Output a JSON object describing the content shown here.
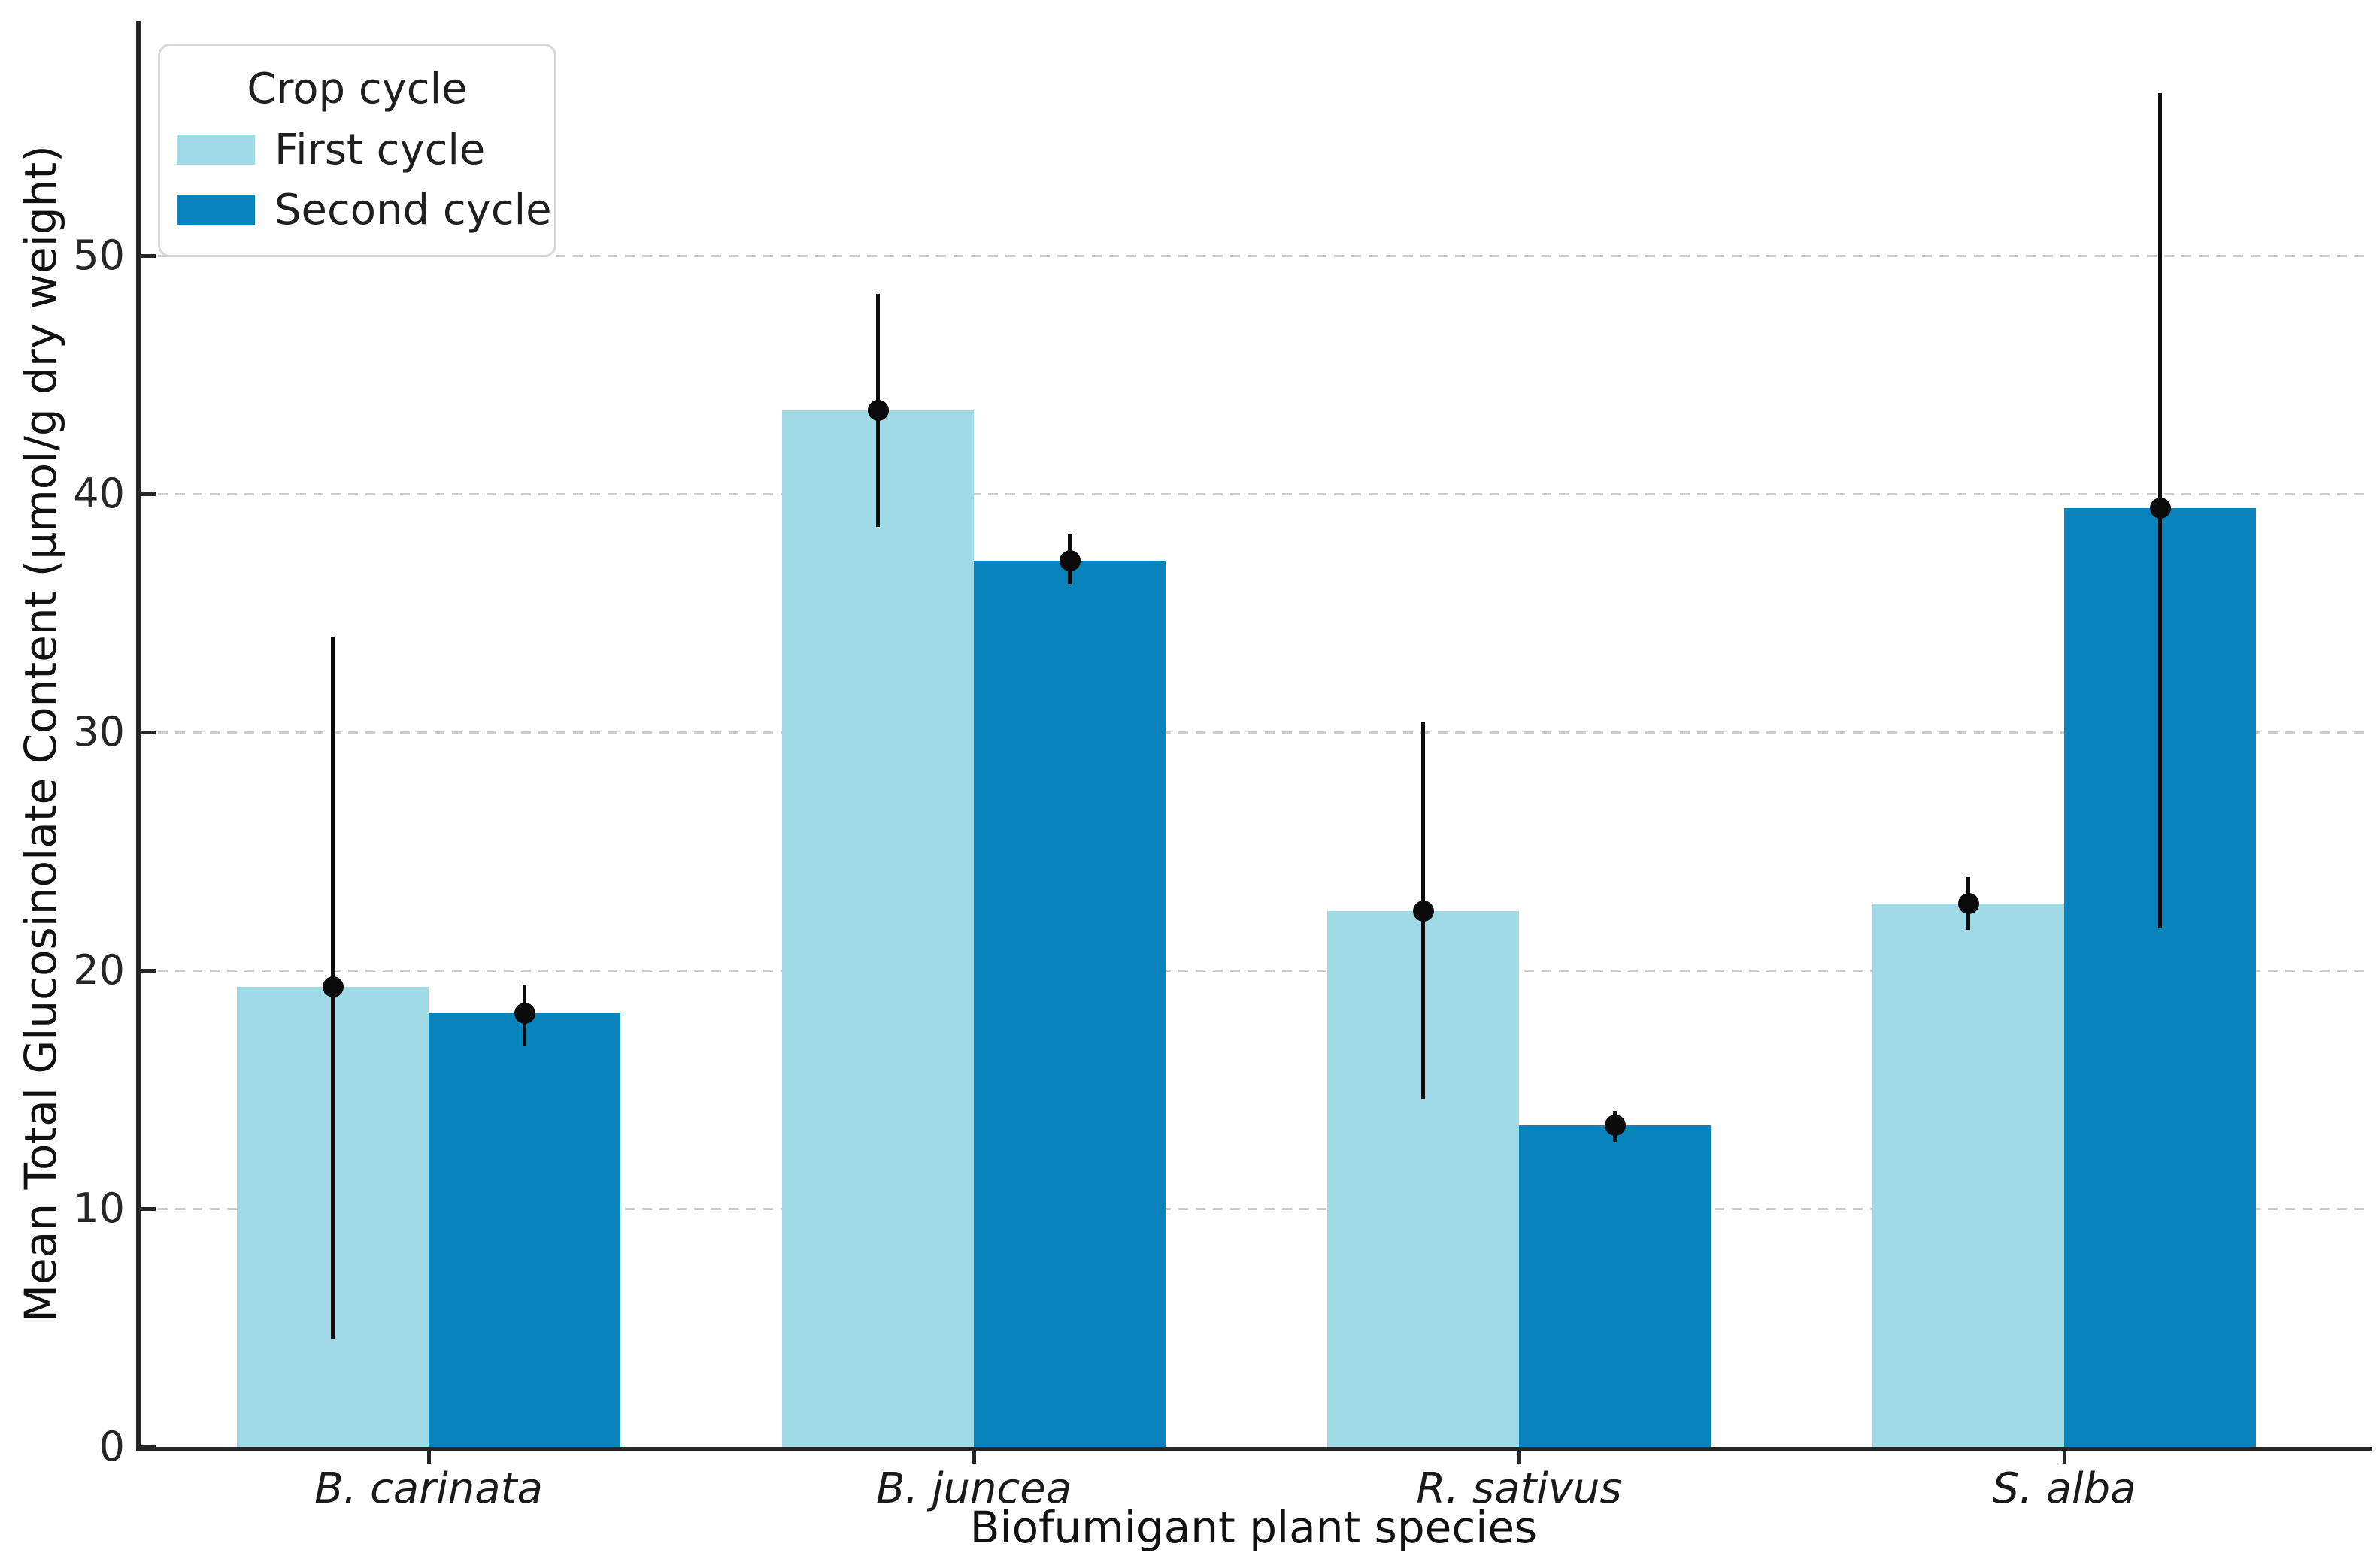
{
  "legend": {
    "title": "Crop cycle",
    "items": [
      {
        "label": "First cycle",
        "color": "#9fdae6"
      },
      {
        "label": "Second cycle",
        "color": "#0883bc"
      }
    ]
  },
  "chart_data": {
    "type": "bar",
    "title": "",
    "xlabel": "Biofumigant plant species",
    "ylabel": "Mean Total Glucosinolate Content (µmol/g dry weight)",
    "categories": [
      "B. carinata",
      "B. juncea",
      "R. sativus",
      "S. alba"
    ],
    "series": [
      {
        "name": "First cycle",
        "color": "#9fdae6",
        "values": [
          19.3,
          43.5,
          22.5,
          22.8
        ],
        "ci_low": [
          4.5,
          38.6,
          14.6,
          21.7
        ],
        "ci_high": [
          34.0,
          48.4,
          30.4,
          23.9
        ]
      },
      {
        "name": "Second cycle",
        "color": "#0883bc",
        "values": [
          18.2,
          37.2,
          13.5,
          39.4
        ],
        "ci_low": [
          16.8,
          36.2,
          12.8,
          21.8
        ],
        "ci_high": [
          19.4,
          38.3,
          14.1,
          56.8
        ]
      }
    ],
    "yticks": [
      0,
      10,
      20,
      30,
      40,
      50
    ],
    "ylim": [
      0,
      59.8
    ],
    "grid": "horizontal dashed gridlines at y-ticks",
    "legend_position": "upper left",
    "error_bars": "vertical black line with filled circular mean marker, no caps",
    "colors": {
      "first_cycle": "#9fdae6",
      "second_cycle": "#0883bc",
      "grid": "#cdcdcd",
      "spine": "#262626",
      "error": "#0b0b0b",
      "background": "#ffffff"
    }
  }
}
